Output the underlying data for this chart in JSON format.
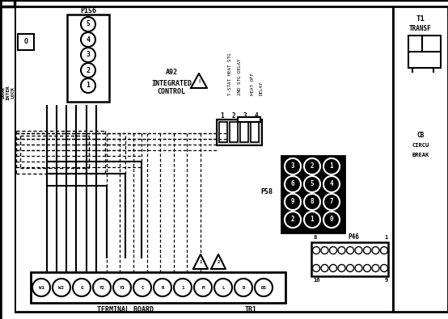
{
  "bg_color": "#ffffff",
  "line_color": "#000000",
  "fig_width": 5.54,
  "fig_height": 3.95,
  "dpi": 100,
  "p156_label": "P156",
  "p156_pins": [
    "5",
    "4",
    "3",
    "2",
    "1"
  ],
  "a92_lines": [
    "A92",
    "INTEGRATED",
    "CONTROL"
  ],
  "vert_labels": [
    "T-STAT HEAT STG",
    "2ND STG DELAY",
    "HEAT OFF",
    "DELAY"
  ],
  "plug_nums": [
    "1",
    "2",
    "3",
    "4"
  ],
  "p58_label": "P58",
  "p58_rows": [
    [
      "3",
      "2",
      "1"
    ],
    [
      "6",
      "5",
      "4"
    ],
    [
      "9",
      "8",
      "7"
    ],
    [
      "2",
      "1",
      "0"
    ]
  ],
  "p46_label": "P46",
  "terminal_labels": [
    "W1",
    "W2",
    "G",
    "Y2",
    "Y1",
    "C",
    "R",
    "1",
    "M",
    "L",
    "D",
    "DS"
  ],
  "t1_lines": [
    "T1",
    "TRANSF"
  ],
  "cb_lines": [
    "CB",
    "CIRCU",
    "BREAK"
  ],
  "tb1_label": "TB1",
  "term_board_label": "TERMINAL BOARD"
}
